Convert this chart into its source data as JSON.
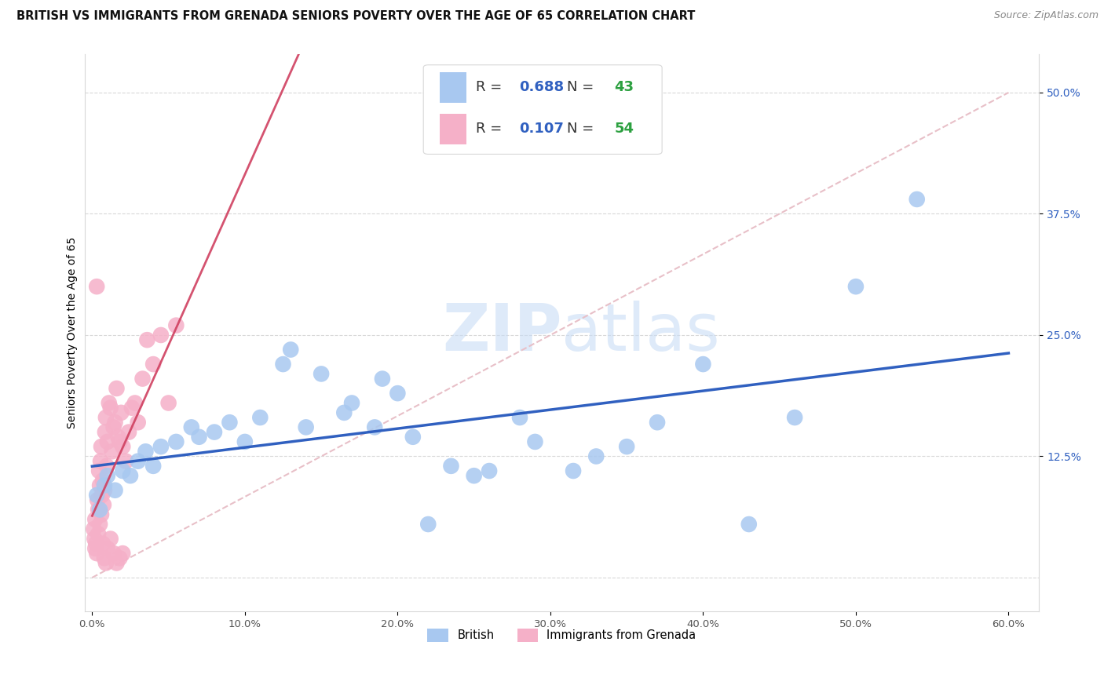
{
  "title": "BRITISH VS IMMIGRANTS FROM GRENADA SENIORS POVERTY OVER THE AGE OF 65 CORRELATION CHART",
  "source": "Source: ZipAtlas.com",
  "ylabel": "Seniors Poverty Over the Age of 65",
  "xlabel_vals": [
    0,
    10,
    20,
    30,
    40,
    50,
    60
  ],
  "ylabel_vals": [
    12.5,
    25.0,
    37.5,
    50.0
  ],
  "xlim": [
    -0.5,
    62
  ],
  "ylim": [
    -3.5,
    54
  ],
  "british_R": 0.688,
  "british_N": 43,
  "grenada_R": 0.107,
  "grenada_N": 54,
  "british_color": "#a8c8f0",
  "grenada_color": "#f5b0c8",
  "british_line_color": "#3060c0",
  "grenada_line_color": "#d04060",
  "dashed_line_color": "#e8c0c8",
  "legend_text_color": "#3060c0",
  "legend_N_color": "#2ca040",
  "background_color": "#ffffff",
  "grid_color": "#d8d8d8",
  "title_fontsize": 10.5,
  "axis_label_fontsize": 10,
  "tick_fontsize": 9.5,
  "legend_fontsize": 13,
  "source_fontsize": 9,
  "watermark_color": "#c8dcf5"
}
